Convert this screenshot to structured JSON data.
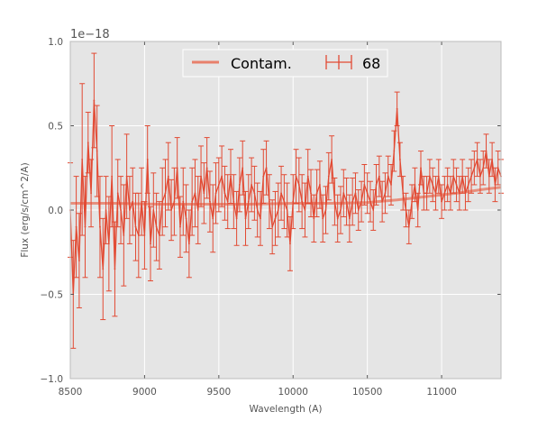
{
  "chart_data": {
    "type": "line",
    "xlabel": "Wavelength (A)",
    "ylabel": "Flux (erg/s/cm^2/A)",
    "y_offset_label": "1e−18",
    "xlim": [
      8500,
      11400
    ],
    "ylim": [
      -1.0,
      1.0
    ],
    "x_ticks": [
      8500,
      9000,
      9500,
      10000,
      10500,
      11000
    ],
    "x_tick_labels": [
      "8500",
      "9000",
      "9500",
      "10000",
      "10500",
      "11000"
    ],
    "y_ticks": [
      -1.0,
      -0.5,
      0.0,
      0.5,
      1.0
    ],
    "y_tick_labels": [
      "−1.0",
      "−0.5",
      "0.0",
      "0.5",
      "1.0"
    ],
    "grid": true,
    "legend_position": "top-center",
    "colors": {
      "plot_bg": "#e5e5e5",
      "grid": "#ffffff",
      "spectrum": "#e24a33",
      "contam": "#e8806b"
    },
    "series": [
      {
        "name": "Contam.",
        "kind": "line",
        "x": [
          8500,
          8800,
          9100,
          9400,
          9700,
          10000,
          10300,
          10500,
          10700,
          10900,
          11100,
          11300,
          11400
        ],
        "y": [
          0.04,
          0.04,
          0.035,
          0.035,
          0.035,
          0.04,
          0.04,
          0.045,
          0.06,
          0.08,
          0.1,
          0.125,
          0.135
        ]
      },
      {
        "name": "68",
        "kind": "errorbar",
        "x": [
          8500,
          8520,
          8540,
          8560,
          8580,
          8600,
          8620,
          8640,
          8660,
          8680,
          8700,
          8720,
          8740,
          8760,
          8780,
          8800,
          8820,
          8840,
          8860,
          8880,
          8900,
          8920,
          8940,
          8960,
          8980,
          9000,
          9020,
          9040,
          9060,
          9080,
          9100,
          9120,
          9140,
          9160,
          9180,
          9200,
          9220,
          9240,
          9260,
          9280,
          9300,
          9320,
          9340,
          9360,
          9380,
          9400,
          9420,
          9440,
          9460,
          9480,
          9500,
          9520,
          9540,
          9560,
          9580,
          9600,
          9620,
          9640,
          9660,
          9680,
          9700,
          9720,
          9740,
          9760,
          9780,
          9800,
          9820,
          9840,
          9860,
          9880,
          9900,
          9920,
          9940,
          9960,
          9980,
          10000,
          10020,
          10040,
          10060,
          10080,
          10100,
          10120,
          10140,
          10160,
          10180,
          10200,
          10220,
          10240,
          10260,
          10280,
          10300,
          10320,
          10340,
          10360,
          10380,
          10400,
          10420,
          10440,
          10460,
          10480,
          10500,
          10520,
          10540,
          10560,
          10580,
          10600,
          10620,
          10640,
          10660,
          10680,
          10700,
          10720,
          10740,
          10760,
          10780,
          10800,
          10820,
          10840,
          10860,
          10880,
          10900,
          10920,
          10940,
          10960,
          10980,
          11000,
          11020,
          11040,
          11060,
          11080,
          11100,
          11120,
          11140,
          11160,
          11180,
          11200,
          11220,
          11240,
          11260,
          11280,
          11300,
          11320,
          11340,
          11360,
          11380,
          11400
        ],
        "y": [
          0.0,
          -0.5,
          -0.1,
          -0.3,
          0.3,
          -0.1,
          0.4,
          0.1,
          0.65,
          0.35,
          -0.1,
          -0.35,
          0.0,
          -0.2,
          0.2,
          -0.35,
          0.1,
          0.0,
          -0.15,
          0.2,
          0.0,
          0.05,
          -0.1,
          -0.15,
          0.05,
          -0.15,
          0.3,
          -0.2,
          0.0,
          -0.1,
          -0.15,
          0.05,
          0.1,
          0.2,
          0.0,
          0.05,
          0.25,
          -0.1,
          0.05,
          -0.05,
          -0.2,
          0.05,
          0.1,
          0.0,
          0.2,
          0.1,
          0.25,
          0.05,
          -0.05,
          0.1,
          0.15,
          0.2,
          0.1,
          0.05,
          0.2,
          0.05,
          -0.05,
          0.15,
          0.25,
          -0.05,
          0.05,
          0.15,
          0.1,
          0.0,
          -0.05,
          0.2,
          0.25,
          0.05,
          -0.1,
          -0.05,
          0.0,
          0.1,
          0.05,
          0.0,
          -0.2,
          0.05,
          0.2,
          0.15,
          0.05,
          0.0,
          0.2,
          0.1,
          -0.05,
          0.1,
          0.15,
          -0.05,
          0.0,
          0.2,
          0.3,
          0.05,
          -0.05,
          0.0,
          0.1,
          0.05,
          -0.05,
          0.05,
          0.1,
          0.0,
          0.05,
          0.15,
          0.1,
          0.05,
          0.0,
          0.15,
          0.2,
          0.05,
          0.1,
          0.2,
          0.15,
          0.35,
          0.6,
          0.3,
          0.1,
          0.0,
          -0.1,
          0.05,
          0.15,
          0.0,
          0.25,
          0.1,
          0.1,
          0.2,
          0.15,
          0.1,
          0.2,
          0.05,
          0.1,
          0.15,
          0.1,
          0.2,
          0.15,
          0.1,
          0.2,
          0.1,
          0.15,
          0.2,
          0.25,
          0.3,
          0.2,
          0.25,
          0.35,
          0.2,
          0.3,
          0.15,
          0.25,
          0.2
        ],
        "err": [
          0.28,
          0.32,
          0.3,
          0.28,
          0.45,
          0.3,
          0.18,
          0.2,
          0.28,
          0.27,
          0.3,
          0.3,
          0.2,
          0.28,
          0.3,
          0.28,
          0.2,
          0.2,
          0.3,
          0.25,
          0.2,
          0.2,
          0.2,
          0.25,
          0.2,
          0.2,
          0.2,
          0.22,
          0.22,
          0.2,
          0.2,
          0.2,
          0.2,
          0.2,
          0.18,
          0.2,
          0.18,
          0.18,
          0.2,
          0.2,
          0.2,
          0.2,
          0.2,
          0.2,
          0.18,
          0.18,
          0.18,
          0.18,
          0.2,
          0.18,
          0.16,
          0.18,
          0.16,
          0.16,
          0.16,
          0.16,
          0.16,
          0.16,
          0.16,
          0.16,
          0.16,
          0.16,
          0.16,
          0.16,
          0.16,
          0.16,
          0.16,
          0.16,
          0.16,
          0.16,
          0.16,
          0.16,
          0.16,
          0.16,
          0.16,
          0.16,
          0.16,
          0.16,
          0.16,
          0.16,
          0.16,
          0.14,
          0.14,
          0.14,
          0.14,
          0.14,
          0.14,
          0.14,
          0.14,
          0.14,
          0.14,
          0.14,
          0.14,
          0.14,
          0.14,
          0.14,
          0.12,
          0.12,
          0.12,
          0.12,
          0.12,
          0.12,
          0.12,
          0.12,
          0.12,
          0.12,
          0.12,
          0.12,
          0.12,
          0.12,
          0.1,
          0.1,
          0.1,
          0.1,
          0.1,
          0.1,
          0.1,
          0.1,
          0.1,
          0.1,
          0.1,
          0.1,
          0.1,
          0.1,
          0.1,
          0.1,
          0.1,
          0.1,
          0.1,
          0.1,
          0.1,
          0.1,
          0.1,
          0.1,
          0.1,
          0.1,
          0.1,
          0.1,
          0.1,
          0.1,
          0.1,
          0.1,
          0.1,
          0.1,
          0.1,
          0.1
        ]
      }
    ]
  }
}
